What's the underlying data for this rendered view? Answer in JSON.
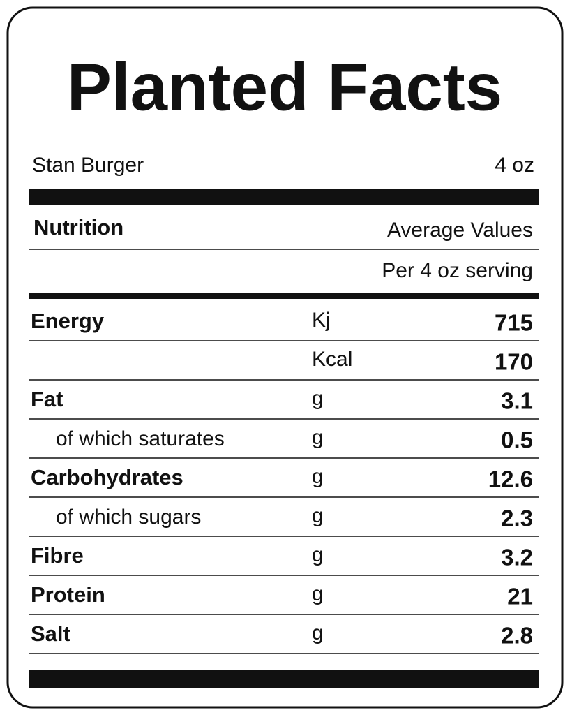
{
  "header": {
    "title": "Planted Facts",
    "product": "Stan Burger",
    "size": "4 oz"
  },
  "table": {
    "heading": "Nutrition",
    "column": "Average Values",
    "serving": "Per 4 oz serving",
    "nutrients": [
      {
        "name": "Energy",
        "amounts": [
          {
            "unit": "Kj",
            "value": 715
          },
          {
            "unit": "Kcal",
            "value": 170
          }
        ]
      },
      {
        "name": "Fat",
        "amounts": [
          {
            "unit": "g",
            "value": 3.1
          }
        ],
        "sub": [
          {
            "name": "of which saturates",
            "unit": "g",
            "value": 0.5
          }
        ]
      },
      {
        "name": "Carbohydrates",
        "amounts": [
          {
            "unit": "g",
            "value": 12.6
          }
        ],
        "sub": [
          {
            "name": "of which sugars",
            "unit": "g",
            "value": 2.3
          }
        ]
      },
      {
        "name": "Fibre",
        "amounts": [
          {
            "unit": "g",
            "value": 3.2
          }
        ]
      },
      {
        "name": "Protein",
        "amounts": [
          {
            "unit": "g",
            "value": 21
          }
        ]
      },
      {
        "name": "Salt",
        "amounts": [
          {
            "unit": "g",
            "value": 2.8
          }
        ]
      }
    ]
  }
}
